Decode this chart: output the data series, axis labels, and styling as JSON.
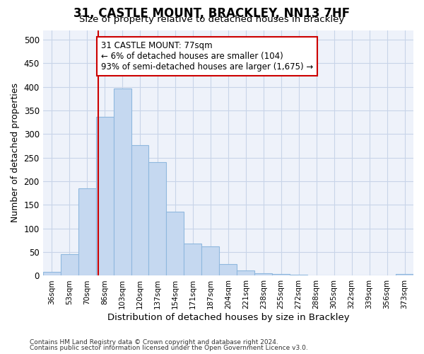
{
  "title_line1": "31, CASTLE MOUNT, BRACKLEY, NN13 7HF",
  "title_line2": "Size of property relative to detached houses in Brackley",
  "xlabel": "Distribution of detached houses by size in Brackley",
  "ylabel": "Number of detached properties",
  "footer_line1": "Contains HM Land Registry data © Crown copyright and database right 2024.",
  "footer_line2": "Contains public sector information licensed under the Open Government Licence v3.0.",
  "bar_labels": [
    "36sqm",
    "53sqm",
    "70sqm",
    "86sqm",
    "103sqm",
    "120sqm",
    "137sqm",
    "154sqm",
    "171sqm",
    "187sqm",
    "204sqm",
    "221sqm",
    "238sqm",
    "255sqm",
    "272sqm",
    "288sqm",
    "305sqm",
    "322sqm",
    "339sqm",
    "356sqm",
    "373sqm"
  ],
  "bar_values": [
    8,
    46,
    185,
    337,
    397,
    276,
    240,
    135,
    68,
    62,
    25,
    11,
    5,
    4,
    2,
    0,
    0,
    0,
    0,
    0,
    3
  ],
  "bar_color": "#c5d8f0",
  "bar_edge_color": "#8fb8de",
  "property_label": "31 CASTLE MOUNT: 77sqm",
  "annotation_line2": "← 6% of detached houses are smaller (104)",
  "annotation_line3": "93% of semi-detached houses are larger (1,675) →",
  "vline_color": "#cc0000",
  "vline_x_index": 2.65,
  "annotation_box_color": "#cc0000",
  "ylim": [
    0,
    520
  ],
  "yticks": [
    0,
    50,
    100,
    150,
    200,
    250,
    300,
    350,
    400,
    450,
    500
  ],
  "grid_color": "#c8d4e8",
  "background_color": "#eef2fa"
}
